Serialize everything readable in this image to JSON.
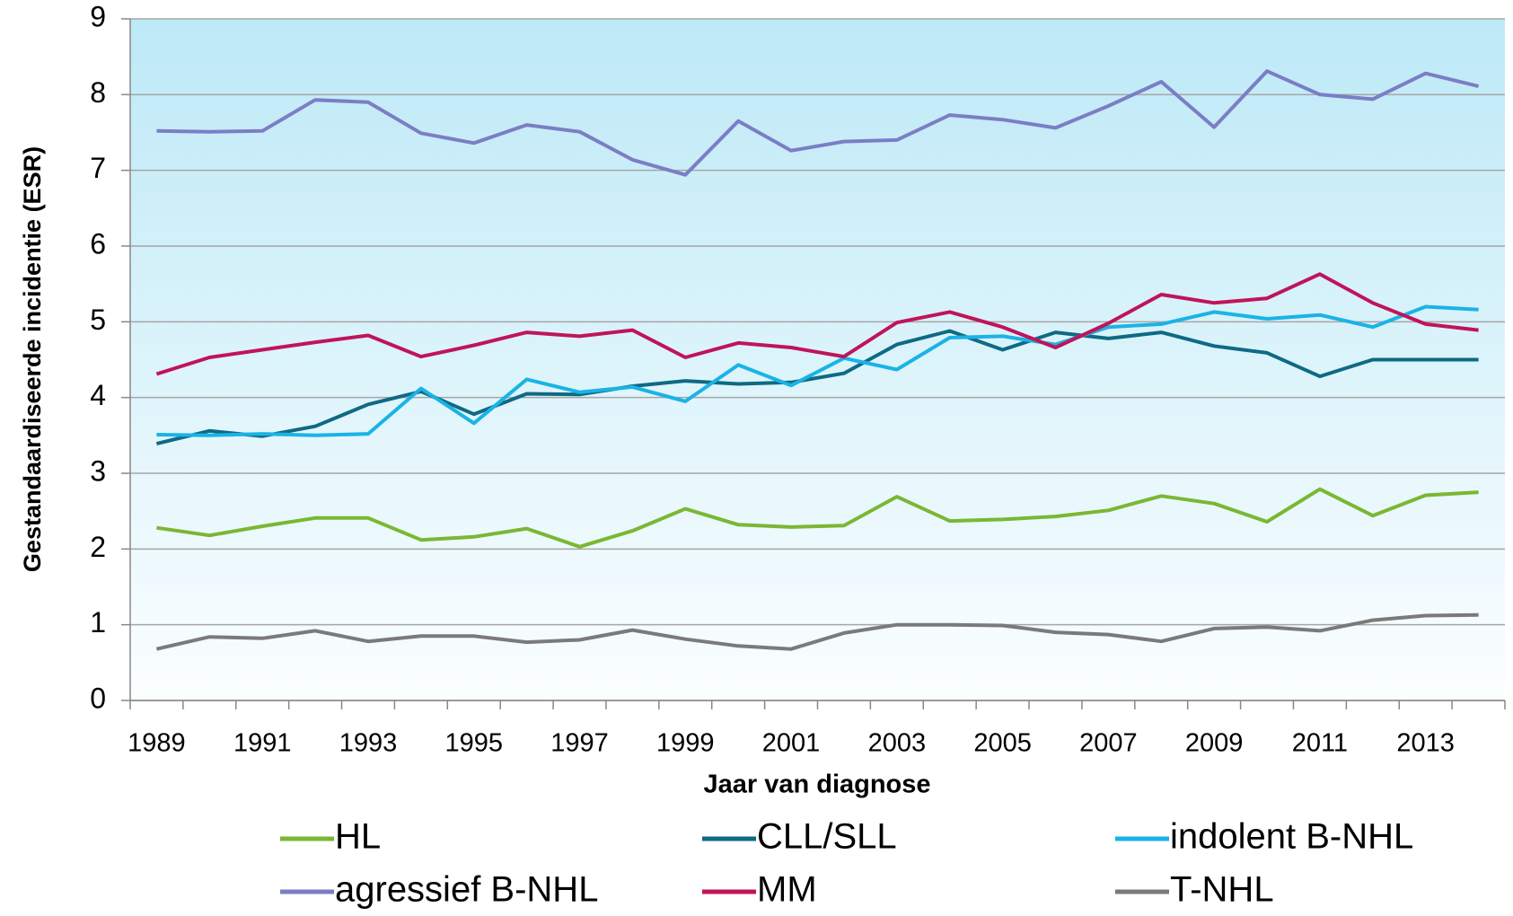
{
  "chart_data": {
    "type": "line",
    "x_label": "Jaar van diagnose",
    "y_label": "Gestandaardiseerde incidentie (ESR)",
    "categories": [
      "1989",
      null,
      "1991",
      null,
      "1993",
      null,
      "1995",
      null,
      "1997",
      null,
      "1999",
      null,
      "2001",
      null,
      "2003",
      null,
      "2005",
      null,
      "2007",
      null,
      "2009",
      null,
      "2011",
      null,
      "2013",
      null
    ],
    "series": [
      {
        "name": "HL",
        "color": "#7ab733",
        "values": [
          2.28,
          2.18,
          2.3,
          2.41,
          2.41,
          2.12,
          2.16,
          2.27,
          2.03,
          2.24,
          2.53,
          2.32,
          2.29,
          2.31,
          2.69,
          2.37,
          2.39,
          2.43,
          2.51,
          2.7,
          2.6,
          2.36,
          2.79,
          2.44,
          2.71,
          2.75
        ]
      },
      {
        "name": "CLL/SLL",
        "color": "#0e6a85",
        "values": [
          3.39,
          3.56,
          3.49,
          3.62,
          3.91,
          4.08,
          3.78,
          4.05,
          4.04,
          4.15,
          4.22,
          4.18,
          4.2,
          4.32,
          4.7,
          4.88,
          4.63,
          4.86,
          4.78,
          4.86,
          4.68,
          4.59,
          4.28,
          4.5,
          4.5,
          4.5
        ]
      },
      {
        "name": "indolent B-NHL",
        "color": "#1ab3e6",
        "values": [
          3.51,
          3.5,
          3.52,
          3.5,
          3.52,
          4.12,
          3.66,
          4.24,
          4.07,
          4.14,
          3.95,
          4.43,
          4.16,
          4.52,
          4.37,
          4.79,
          4.81,
          4.7,
          4.93,
          4.97,
          5.13,
          5.04,
          5.09,
          4.93,
          5.2,
          5.16
        ]
      },
      {
        "name": "agressief B-NHL",
        "color": "#7b7ec4",
        "values": [
          7.52,
          7.51,
          7.52,
          7.93,
          7.9,
          7.49,
          7.36,
          7.6,
          7.51,
          7.14,
          6.94,
          7.65,
          7.26,
          7.38,
          7.4,
          7.73,
          7.67,
          7.56,
          7.85,
          8.17,
          7.57,
          8.31,
          8.0,
          7.94,
          8.28,
          8.11
        ]
      },
      {
        "name": "MM",
        "color": "#c0145a",
        "values": [
          4.31,
          4.53,
          4.63,
          4.73,
          4.82,
          4.54,
          4.69,
          4.86,
          4.81,
          4.89,
          4.53,
          4.72,
          4.66,
          4.54,
          4.99,
          5.13,
          4.93,
          4.66,
          4.98,
          5.36,
          5.25,
          5.31,
          5.63,
          5.25,
          4.97,
          4.89
        ]
      },
      {
        "name": "T-NHL",
        "color": "#7a7a7a",
        "values": [
          0.68,
          0.84,
          0.82,
          0.92,
          0.78,
          0.85,
          0.85,
          0.77,
          0.8,
          0.93,
          0.81,
          0.72,
          0.68,
          0.89,
          1.0,
          1.0,
          0.99,
          0.9,
          0.87,
          0.78,
          0.95,
          0.97,
          0.92,
          1.06,
          1.12,
          1.13
        ]
      }
    ],
    "ylim": [
      0,
      9
    ],
    "yticks": [
      0,
      1,
      2,
      3,
      4,
      5,
      6,
      7,
      8,
      9
    ],
    "grid": true,
    "legend": "bottom"
  }
}
